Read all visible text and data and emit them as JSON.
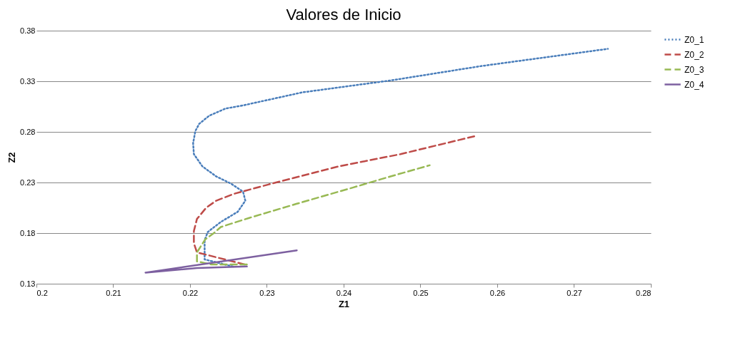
{
  "chart_data": {
    "type": "line",
    "title": "Valores de Inicio",
    "xlabel": "Z1",
    "ylabel": "Z2",
    "xlim": [
      0.2,
      0.28
    ],
    "xticks": [
      0.2,
      0.21,
      0.22,
      0.23,
      0.24,
      0.25,
      0.26,
      0.27,
      0.28
    ],
    "ylim": [
      0.13,
      0.38
    ],
    "yticks": [
      0.13,
      0.18,
      0.23,
      0.28,
      0.33,
      0.38
    ],
    "grid": "y",
    "legend": "right",
    "series": [
      {
        "name": "Z0_1",
        "color": "#4a7ebb",
        "line_style": "dotted",
        "x": [
          0.2256,
          0.2219,
          0.2219,
          0.2223,
          0.224,
          0.2262,
          0.2272,
          0.2269,
          0.2253,
          0.2234,
          0.2216,
          0.2205,
          0.2204,
          0.2207,
          0.2212,
          0.2225,
          0.2246,
          0.2268,
          0.2346,
          0.2463,
          0.2579,
          0.2744
        ],
        "values": [
          0.147,
          0.154,
          0.173,
          0.181,
          0.191,
          0.201,
          0.212,
          0.221,
          0.229,
          0.236,
          0.246,
          0.258,
          0.269,
          0.281,
          0.288,
          0.296,
          0.303,
          0.306,
          0.319,
          0.331,
          0.345,
          0.362
        ]
      },
      {
        "name": "Z0_2",
        "color": "#be4b48",
        "line_style": "dashed",
        "x": [
          0.2271,
          0.2209,
          0.2205,
          0.2205,
          0.2209,
          0.2221,
          0.2234,
          0.2258,
          0.2302,
          0.2348,
          0.2394,
          0.2474,
          0.2572
        ],
        "values": [
          0.149,
          0.161,
          0.17,
          0.182,
          0.194,
          0.205,
          0.212,
          0.219,
          0.228,
          0.237,
          0.246,
          0.258,
          0.276
        ]
      },
      {
        "name": "Z0_3",
        "color": "#98b954",
        "line_style": "dashed",
        "x": [
          0.2274,
          0.2228,
          0.2209,
          0.2209,
          0.222,
          0.2231,
          0.224,
          0.2277,
          0.2339,
          0.2412,
          0.2461,
          0.2512
        ],
        "values": [
          0.149,
          0.149,
          0.152,
          0.161,
          0.174,
          0.18,
          0.186,
          0.195,
          0.209,
          0.225,
          0.236,
          0.247
        ]
      },
      {
        "name": "Z0_4",
        "color": "#7d60a0",
        "line_style": "solid",
        "x": [
          0.2274,
          0.2209,
          0.2142,
          0.2339
        ],
        "values": [
          0.147,
          0.1455,
          0.141,
          0.163
        ]
      }
    ]
  }
}
